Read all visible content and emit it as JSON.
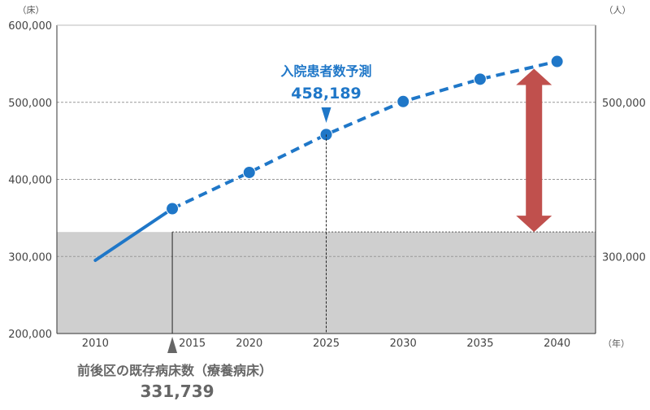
{
  "chart_data": {
    "type": "line",
    "x": [
      2010,
      2015,
      2020,
      2025,
      2030,
      2035,
      2040
    ],
    "series": [
      {
        "values": [
          295000,
          362000,
          409000,
          458189,
          501000,
          530000,
          553000
        ]
      }
    ],
    "xticks": [
      "2010",
      "2015",
      "2020",
      "2025",
      "2030",
      "2035",
      "2040"
    ],
    "yticks_left": [
      "200,000",
      "300,000",
      "400,000",
      "500,000",
      "600,000"
    ],
    "yticks_right": [
      "300,000",
      "500,000"
    ],
    "ylim": [
      200000,
      600000
    ],
    "xlim": [
      2007.5,
      2042.5
    ],
    "left_unit": "（床）",
    "right_unit": "（人）",
    "x_unit": "（年）",
    "solid_until": 2015,
    "existing_beds": {
      "label": "前後区の既存病床数（療養病床）",
      "value_text": "331,739",
      "value": 331739,
      "at": 2015
    },
    "projection_callout": {
      "title": "入院患者数予測",
      "value_text": "458,189",
      "at": 2025
    },
    "gap_arrow_at": 2038.5,
    "colors": {
      "line": "#1f77c8",
      "band": "#cfcfcf",
      "arrow": "#c0504d",
      "grid": "#999999"
    }
  }
}
